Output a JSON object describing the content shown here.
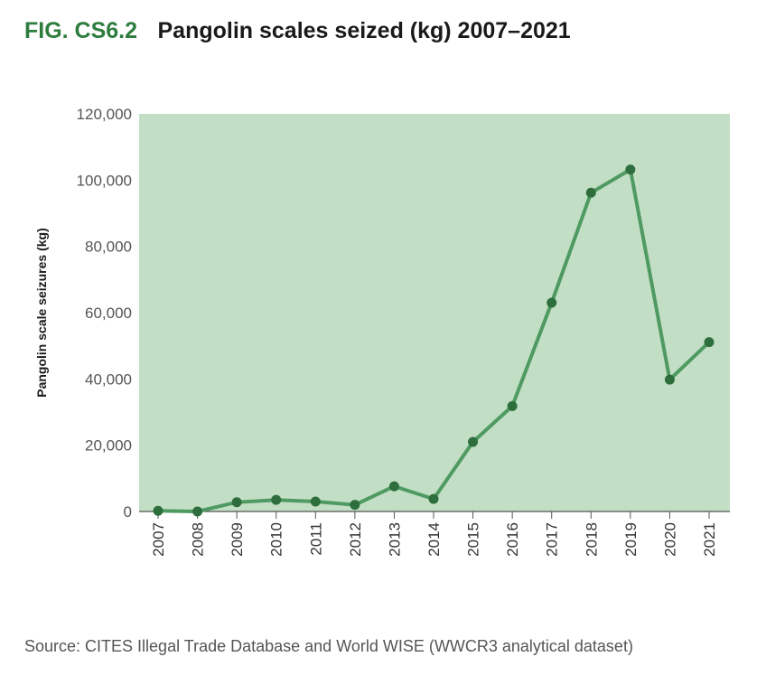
{
  "figure": {
    "label": "FIG. CS6.2",
    "title": "Pangolin scales seized (kg) 2007–2021",
    "source": "Source: CITES Illegal Trade Database and World WISE (WWCR3 analytical dataset)"
  },
  "colors": {
    "plot_background": "#c2dfc5",
    "line": "#4f9a62",
    "marker": "#2d6e3c",
    "title_accent": "#2e7d3e"
  },
  "chart_data": {
    "type": "line",
    "title": "Pangolin scales seized (kg) 2007–2021",
    "xlabel": "",
    "ylabel": "Pangolin scale seizures (kg)",
    "categories": [
      "2007",
      "2008",
      "2009",
      "2010",
      "2011",
      "2012",
      "2013",
      "2014",
      "2015",
      "2016",
      "2017",
      "2018",
      "2019",
      "2020",
      "2021"
    ],
    "series": [
      {
        "name": "Pangolin scales seized (kg)",
        "values": [
          200,
          0,
          2800,
          3500,
          3000,
          2000,
          7600,
          3800,
          21000,
          31800,
          63000,
          96200,
          103200,
          39800,
          51100
        ]
      }
    ],
    "ylim": [
      0,
      120000
    ],
    "yticks": [
      0,
      20000,
      40000,
      60000,
      80000,
      100000,
      120000
    ],
    "ytick_labels": [
      "0",
      "20,000",
      "40,000",
      "60,000",
      "80,000",
      "100,000",
      "120,000"
    ],
    "grid": false
  }
}
